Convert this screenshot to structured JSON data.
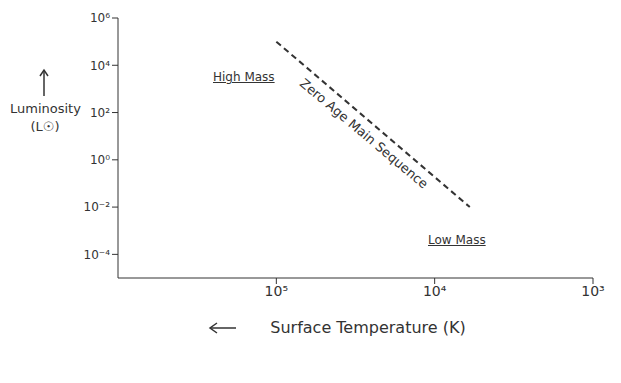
{
  "chart_data": {
    "type": "line",
    "x_label": "Surface Temperature (K)",
    "y_label": "Luminosity (L☉)",
    "log": true,
    "grid": false,
    "x": [
      100000,
      6000
    ],
    "series": [
      {
        "name": "Zero Age Main Sequence",
        "color": "#333333",
        "line_style": "dashed",
        "values": [
          100000,
          0.01
        ]
      }
    ],
    "xlim": [
      1000000,
      1000
    ],
    "xticks": [
      {
        "value": 100000,
        "label": "10⁵"
      },
      {
        "value": 10000,
        "label": "10⁴"
      },
      {
        "value": 1000,
        "label": "10³"
      }
    ],
    "ylim": [
      1e-05,
      1000000
    ],
    "yticks": [
      {
        "value": 0.0001,
        "label": "10⁻⁴"
      },
      {
        "value": 0.01,
        "label": "10⁻²"
      },
      {
        "value": 1,
        "label": "10⁰"
      },
      {
        "value": 100,
        "label": "10²"
      },
      {
        "value": 10000,
        "label": "10⁴"
      },
      {
        "value": 1000000,
        "label": "10⁶"
      }
    ],
    "annotations": [
      "High Mass",
      "Low Mass"
    ]
  }
}
